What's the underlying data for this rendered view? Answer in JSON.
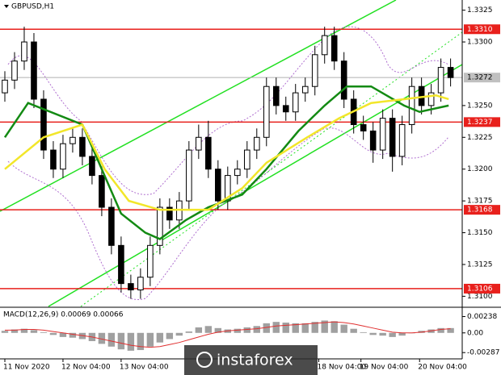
{
  "chart_data": [
    {
      "type": "candlestick",
      "title": "GBPUSD,H1",
      "xlim": [
        -0.5,
        47.2
      ],
      "ylim": [
        1.3092,
        1.3333
      ],
      "yticks": [
        1.3325,
        {
          "value": 1.33,
          "label": "1.3300"
        },
        {
          "value": 1.325,
          "label": "1.3250"
        },
        1.3225,
        {
          "value": 1.32,
          "label": "1.3200"
        },
        1.3175,
        {
          "value": 1.315,
          "label": "1.3150"
        },
        1.3125,
        {
          "value": 1.31,
          "label": "1.3100"
        }
      ],
      "levels": [
        {
          "value": 1.331,
          "label": "1.3310"
        },
        {
          "value": 1.3237,
          "label": "1.3237"
        },
        {
          "value": 1.3168,
          "label": "1.3168"
        },
        {
          "value": 1.3106,
          "label": "1.3106"
        }
      ],
      "level_color": "#e8201c",
      "last_price": {
        "value": 1.3272,
        "label": "1.3272"
      },
      "candle_color": "#000000",
      "open": [
        1.326,
        1.327,
        1.3285,
        1.33,
        1.3255,
        1.3215,
        1.32,
        1.322,
        1.3225,
        1.321,
        1.3195,
        1.317,
        1.314,
        1.311,
        1.3105,
        1.3115,
        1.314,
        1.317,
        1.316,
        1.3175,
        1.3215,
        1.3225,
        1.32,
        1.3175,
        1.3195,
        1.32,
        1.3215,
        1.3225,
        1.3265,
        1.325,
        1.3245,
        1.326,
        1.3265,
        1.329,
        1.3305,
        1.3285,
        1.3255,
        1.3235,
        1.323,
        1.3215,
        1.324,
        1.321,
        1.3235,
        1.3265,
        1.325,
        1.326,
        1.328
      ],
      "high": [
        1.3277,
        1.3292,
        1.3312,
        1.3307,
        1.3262,
        1.3222,
        1.3227,
        1.3232,
        1.3232,
        1.3217,
        1.3202,
        1.3177,
        1.3147,
        1.3117,
        1.3122,
        1.3147,
        1.3177,
        1.3177,
        1.3182,
        1.3222,
        1.3235,
        1.3238,
        1.3207,
        1.3202,
        1.3207,
        1.3222,
        1.3232,
        1.3272,
        1.3272,
        1.3257,
        1.3267,
        1.3272,
        1.3297,
        1.3312,
        1.3312,
        1.3292,
        1.3262,
        1.3242,
        1.3237,
        1.3247,
        1.3247,
        1.3242,
        1.3272,
        1.3272,
        1.3267,
        1.3287,
        1.3287
      ],
      "low": [
        1.3253,
        1.3263,
        1.3278,
        1.3248,
        1.3208,
        1.3193,
        1.3193,
        1.3213,
        1.3203,
        1.3188,
        1.3163,
        1.3133,
        1.3103,
        1.3098,
        1.3098,
        1.3108,
        1.3133,
        1.3153,
        1.3153,
        1.3168,
        1.3208,
        1.3193,
        1.3168,
        1.3168,
        1.3188,
        1.3193,
        1.3208,
        1.3218,
        1.3243,
        1.3238,
        1.3238,
        1.3253,
        1.3258,
        1.3283,
        1.3278,
        1.3248,
        1.3228,
        1.3223,
        1.3205,
        1.3208,
        1.3198,
        1.3203,
        1.3228,
        1.3243,
        1.3243,
        1.3253,
        1.3265
      ],
      "close": [
        1.327,
        1.3285,
        1.33,
        1.3255,
        1.3215,
        1.32,
        1.322,
        1.3225,
        1.321,
        1.3195,
        1.317,
        1.314,
        1.311,
        1.3105,
        1.3115,
        1.314,
        1.317,
        1.316,
        1.3175,
        1.3215,
        1.3225,
        1.32,
        1.3175,
        1.3195,
        1.32,
        1.3215,
        1.3225,
        1.3265,
        1.325,
        1.3245,
        1.326,
        1.3265,
        1.329,
        1.3305,
        1.3285,
        1.3255,
        1.3235,
        1.323,
        1.3215,
        1.324,
        1.321,
        1.3235,
        1.3265,
        1.325,
        1.326,
        1.328,
        1.3272
      ],
      "series": [
        {
          "color": "#138a13",
          "x": [
            0,
            2.4,
            8,
            12,
            14.5,
            16,
            18.7,
            21,
            24.5,
            27,
            30.3,
            33,
            35.3,
            37.8,
            41.2,
            42.8,
            45.8
          ],
          "values": [
            1.3225,
            1.3252,
            1.3235,
            1.3165,
            1.315,
            1.3145,
            1.316,
            1.317,
            1.318,
            1.32,
            1.323,
            1.325,
            1.3265,
            1.3265,
            1.325,
            1.3245,
            1.325
          ]
        },
        {
          "color": "#f2e62a",
          "x": [
            0,
            4,
            8,
            10.3,
            12.8,
            16,
            21,
            24.5,
            27,
            31.2,
            34.5,
            37.8,
            41.2,
            44.5,
            45.8
          ],
          "values": [
            1.32,
            1.3225,
            1.3235,
            1.32,
            1.3175,
            1.3168,
            1.3168,
            1.3185,
            1.3205,
            1.3225,
            1.324,
            1.3252,
            1.3255,
            1.3258,
            1.3255
          ]
        }
      ]
    },
    {
      "type": "macd",
      "title": "MACD(12,26,9) 0.00069 0.00066",
      "xlim": [
        -0.5,
        47.2
      ],
      "ylim": [
        -0.0032,
        0.0035
      ],
      "yticks": [
        0.00238,
        {
          "value": 0,
          "label": "0.00"
        },
        -0.00287
      ],
      "xticks": [
        {
          "value": 0,
          "label": "11 Nov 2020"
        },
        {
          "value": 6,
          "label": "12 Nov 04:00"
        },
        {
          "value": 12,
          "label": "13 Nov 04:00"
        },
        {
          "value": 32.4,
          "label": "18 Nov 04:00"
        },
        {
          "value": 36.75,
          "label": "19 Nov 04:00"
        },
        {
          "value": 42.8,
          "label": "20 Nov 04:00"
        }
      ],
      "series": [
        {
          "type": "bar",
          "color": "#a0a0a0",
          "values": [
            0.0003,
            0.0005,
            0.0006,
            0.0004,
            0.0001,
            -0.0003,
            -0.0006,
            -0.0007,
            -0.0009,
            -0.0012,
            -0.0016,
            -0.002,
            -0.0024,
            -0.0026,
            -0.0025,
            -0.002,
            -0.0014,
            -0.0009,
            -0.0004,
            0.0002,
            0.0008,
            0.001,
            0.0007,
            0.0005,
            0.0006,
            0.0008,
            0.001,
            0.0014,
            0.0016,
            0.0015,
            0.0014,
            0.0014,
            0.0016,
            0.0018,
            0.0017,
            0.0012,
            0.0006,
            0.0001,
            -0.0003,
            -0.0004,
            -0.0006,
            -0.0004,
            0.0,
            0.0003,
            0.0005,
            0.0007,
            0.0007
          ]
        },
        {
          "type": "line",
          "color": "#e03030",
          "values": [
            0.0004,
            0.0004,
            0.0005,
            0.0005,
            0.0004,
            0.0002,
            0.0,
            -0.0002,
            -0.0004,
            -0.0006,
            -0.0009,
            -0.0012,
            -0.0015,
            -0.0018,
            -0.002,
            -0.0021,
            -0.002,
            -0.0017,
            -0.0014,
            -0.001,
            -0.0006,
            -0.0002,
            0.0001,
            0.0003,
            0.0004,
            0.0005,
            0.0006,
            0.0008,
            0.001,
            0.0011,
            0.0012,
            0.0013,
            0.0014,
            0.0015,
            0.0016,
            0.0015,
            0.0013,
            0.001,
            0.0007,
            0.0004,
            0.0001,
            0.0,
            0.0,
            0.0001,
            0.0003,
            0.0005,
            0.0006
          ]
        }
      ]
    }
  ],
  "watermark": "instaforex"
}
